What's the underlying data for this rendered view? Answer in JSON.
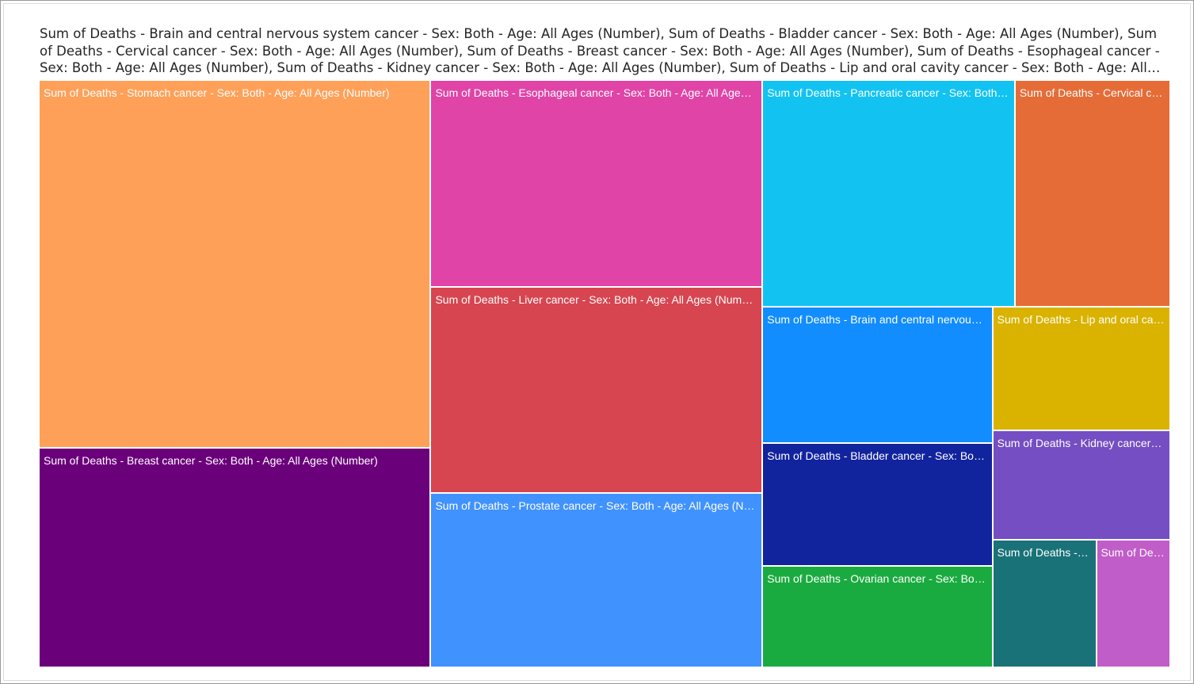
{
  "chart_data": {
    "type": "treemap",
    "title": "Sum of Deaths - Brain and central nervous system cancer - Sex: Both - Age: All Ages (Number), Sum of Deaths - Bladder cancer - Sex: Both - Age: All Ages (Number), Sum of Deaths - Cervical cancer - Sex: Both - Age: All Ages (Number), Sum of Deaths - Breast cancer - Sex: Both - Age: All Ages (Number), Sum of Deaths - Esophageal cancer - Sex: Both - Age: All Ages (Number), Sum of Deaths - Kidney cancer - Sex: Both - Age: All Ages (Number), Sum of Deaths - Lip and oral cavity cancer - Sex: Both - Age: All Ages (Number)",
    "tiles": [
      {
        "label": "Sum of Deaths - Stomach cancer - Sex: Both - Age: All Ages (Number)",
        "value": 229,
        "color": "#FFA058"
      },
      {
        "label": "Sum of Deaths - Breast cancer - Sex: Both - Age: All Ages (Number)",
        "value": 137,
        "color": "#6B007B"
      },
      {
        "label": "Sum of Deaths - Esophageal cancer - Sex: Both - Age: All Ages (Number)",
        "value": 109,
        "color": "#E044A7"
      },
      {
        "label": "Sum of Deaths - Liver cancer - Sex: Both - Age: All Ages (Number)",
        "value": 109,
        "color": "#D64550"
      },
      {
        "label": "Sum of Deaths - Prostate cancer - Sex: Both - Age: All Ages (Number)",
        "value": 92,
        "color": "#4092FF"
      },
      {
        "label": "Sum of Deaths - Pancreatic cancer - Sex: Both - Age: All Ages (Number)",
        "value": 91,
        "color": "#12C3F2"
      },
      {
        "label": "Sum of Deaths - Cervical cancer - Sex: Both - Age: All Ages (Number)",
        "value": 56,
        "color": "#E66C37"
      },
      {
        "label": "Sum of Deaths - Brain and central nervous system cancer - Sex: Both - Age: All Ages (Number)",
        "value": 50,
        "color": "#118DFF"
      },
      {
        "label": "Sum of Deaths - Bladder cancer - Sex: Both - Age: All Ages (Number)",
        "value": 45,
        "color": "#12239E"
      },
      {
        "label": "Sum of Deaths - Ovarian cancer - Sex: Both - Age: All Ages (Number)",
        "value": 37,
        "color": "#1AAB40"
      },
      {
        "label": "Sum of Deaths - Lip and oral cavity cancer - Sex: Both - Age: All Ages (Number)",
        "value": 35,
        "color": "#D9B300"
      },
      {
        "label": "Sum of Deaths - Kidney cancer - Sex: Both - Age: All Ages (Number)",
        "value": 31,
        "color": "#744EC2"
      },
      {
        "label": "Sum of Deaths - Sex: Both - Age: All Ages (Number)",
        "value": 21,
        "color": "#197278"
      },
      {
        "label": "Sum of Deaths - Sex: Both - Age: All Ages (Number)",
        "value": 15,
        "color": "#C15DC8"
      }
    ]
  }
}
